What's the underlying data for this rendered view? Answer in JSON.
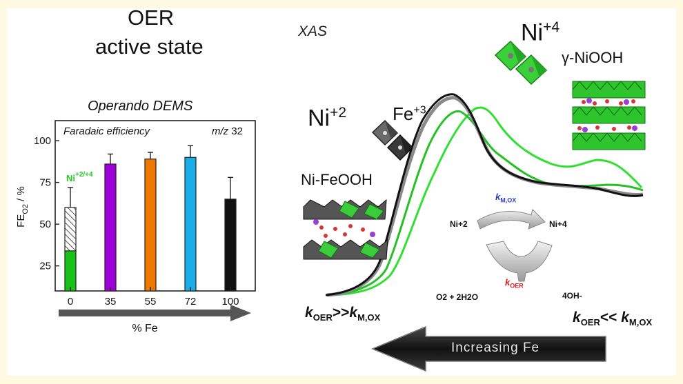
{
  "left": {
    "title_line1": "OER",
    "title_line2": "active state",
    "subtitle": "Operando DEMS",
    "inner_label": "Faradaic efficiency",
    "mz_m": "m/z",
    "mz_val": " 32",
    "ylabel_main": "FE",
    "ylabel_sub": "O2",
    "ylabel_unit": " / %",
    "xlabel": "% Fe",
    "ni_label": "Ni",
    "ni_sup": "+2/+4"
  },
  "chart_data": {
    "type": "bar",
    "title": "Operando DEMS",
    "categories": [
      "0",
      "35",
      "55",
      "72",
      "100"
    ],
    "values": [
      60,
      86,
      89,
      90,
      65
    ],
    "errors": [
      12,
      6,
      4,
      7,
      13
    ],
    "segments_first_bar": [
      {
        "name": "Ni+2/+4",
        "value": 34,
        "color": "#19c219"
      },
      {
        "name": "hatched",
        "value": 26,
        "color": "#ffffff"
      }
    ],
    "colors": [
      "#19c219",
      "#a000d8",
      "#ee7700",
      "#1aaee8",
      "#111111"
    ],
    "ylim": [
      10,
      112
    ],
    "yticks": [
      25,
      50,
      75,
      100
    ],
    "xlabel": "% Fe",
    "ylabel": "FEO2 / %"
  },
  "right": {
    "xas": "XAS",
    "ni4_base": "Ni",
    "ni4_sup": "+4",
    "gamma": "γ-NiOOH",
    "ni2_base": "Ni",
    "ni2_sup": "+2",
    "fe3_base": "Fe",
    "fe3_sup": "+3",
    "nifeooh": "Ni-FeOOH",
    "cycle_ni2": "Ni+2",
    "cycle_ni4": "Ni+4",
    "kmox_k": "k",
    "kmox_sub": "M,OX",
    "koer_k": "k",
    "koer_sub": "OER",
    "o2": "O2 + 2H2O",
    "oh": "4OH-",
    "left_rel_k1": "k",
    "left_rel_sub1": "OER",
    "left_rel_op": ">>",
    "left_rel_k2": "k",
    "left_rel_sub2": "M,OX",
    "right_rel_k1": "k",
    "right_rel_sub1": "OER",
    "right_rel_op": "<< ",
    "right_rel_k2": "k",
    "right_rel_sub2": "M,OX",
    "arrow_label": "Increasing Fe",
    "kmox_color": "#2a3fbf",
    "koer_color": "#e0161c"
  }
}
